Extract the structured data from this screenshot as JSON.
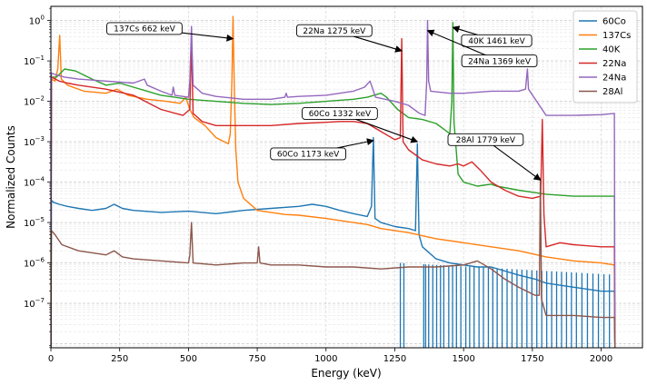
{
  "chart_data": {
    "type": "line",
    "title": "",
    "xlabel": "Energy (keV)",
    "ylabel": "Normalized Counts",
    "xlim": [
      0,
      2150
    ],
    "ylim_log10": [
      -8.1,
      0.35
    ],
    "yscale": "log",
    "grid": true,
    "legend_position": "top-right",
    "x_ticks": [
      0,
      250,
      500,
      750,
      1000,
      1250,
      1500,
      1750,
      2000
    ],
    "x_tick_labels": [
      "0",
      "250",
      "500",
      "750",
      "1000",
      "1250",
      "1500",
      "1750",
      "2000"
    ],
    "y_ticks_log10": [
      -7,
      -6,
      -5,
      -4,
      -3,
      -2,
      -1,
      0
    ],
    "y_tick_bases": [
      "10",
      "10",
      "10",
      "10",
      "10",
      "10",
      "10",
      "10"
    ],
    "y_tick_exponents": [
      "−7",
      "−6",
      "−5",
      "−4",
      "−3",
      "−2",
      "−1",
      "0"
    ],
    "series": [
      {
        "name": "60Co",
        "color": "#1f77b4",
        "points": [
          [
            0,
            -8.1
          ],
          [
            2,
            -4.45
          ],
          [
            10,
            -4.5
          ],
          [
            30,
            -4.55
          ],
          [
            60,
            -4.6
          ],
          [
            100,
            -4.65
          ],
          [
            150,
            -4.7
          ],
          [
            200,
            -4.65
          ],
          [
            230,
            -4.55
          ],
          [
            260,
            -4.65
          ],
          [
            300,
            -4.7
          ],
          [
            400,
            -4.75
          ],
          [
            500,
            -4.72
          ],
          [
            600,
            -4.78
          ],
          [
            700,
            -4.7
          ],
          [
            800,
            -4.65
          ],
          [
            900,
            -4.6
          ],
          [
            950,
            -4.55
          ],
          [
            1000,
            -4.6
          ],
          [
            1050,
            -4.7
          ],
          [
            1100,
            -4.78
          ],
          [
            1150,
            -4.85
          ],
          [
            1165,
            -4.6
          ],
          [
            1172,
            -2.9
          ],
          [
            1178,
            -4.9
          ],
          [
            1200,
            -5.0
          ],
          [
            1250,
            -5.1
          ],
          [
            1300,
            -5.15
          ],
          [
            1325,
            -5.2
          ],
          [
            1332,
            -3.05
          ],
          [
            1338,
            -5.3
          ],
          [
            1350,
            -5.6
          ],
          [
            1400,
            -5.9
          ],
          [
            1450,
            -6.0
          ],
          [
            1500,
            -6.05
          ],
          [
            1550,
            -6.1
          ],
          [
            1600,
            -6.1
          ],
          [
            1700,
            -6.3
          ],
          [
            1760,
            -6.4
          ],
          [
            1800,
            -6.5
          ],
          [
            1900,
            -6.6
          ],
          [
            2000,
            -6.7
          ],
          [
            2048,
            -6.7
          ],
          [
            2050,
            -8.1
          ]
        ],
        "dropouts_x": [
          1270,
          1283,
          1355,
          1362,
          1373,
          1388,
          1402,
          1416,
          1428,
          1446,
          1460,
          1474,
          1490,
          1508,
          1522,
          1538,
          1556,
          1572,
          1590,
          1606,
          1622,
          1640,
          1658,
          1676,
          1694,
          1712,
          1730,
          1748,
          1766,
          1784,
          1802,
          1820,
          1838,
          1856,
          1874,
          1892,
          1910,
          1930,
          1950,
          1970,
          1990,
          2010,
          2030
        ]
      },
      {
        "name": "137Cs",
        "color": "#ff7f0e",
        "points": [
          [
            0,
            -8.1
          ],
          [
            2,
            -1.45
          ],
          [
            15,
            -1.5
          ],
          [
            25,
            -1.2
          ],
          [
            32,
            -0.37
          ],
          [
            38,
            -1.45
          ],
          [
            60,
            -1.6
          ],
          [
            120,
            -1.75
          ],
          [
            200,
            -1.8
          ],
          [
            240,
            -1.7
          ],
          [
            280,
            -1.85
          ],
          [
            350,
            -1.95
          ],
          [
            420,
            -2.0
          ],
          [
            470,
            -2.05
          ],
          [
            490,
            -1.9
          ],
          [
            505,
            -2.2
          ],
          [
            520,
            -2.4
          ],
          [
            560,
            -2.6
          ],
          [
            600,
            -2.9
          ],
          [
            630,
            -3.0
          ],
          [
            645,
            -3.05
          ],
          [
            652,
            -2.8
          ],
          [
            658,
            -1.5
          ],
          [
            662,
            0.1
          ],
          [
            666,
            -1.5
          ],
          [
            672,
            -3.2
          ],
          [
            680,
            -4.0
          ],
          [
            700,
            -4.4
          ],
          [
            750,
            -4.7
          ],
          [
            800,
            -4.75
          ],
          [
            850,
            -4.8
          ],
          [
            900,
            -4.82
          ],
          [
            1000,
            -4.9
          ],
          [
            1100,
            -5.0
          ],
          [
            1150,
            -5.05
          ],
          [
            1200,
            -5.15
          ],
          [
            1300,
            -5.25
          ],
          [
            1400,
            -5.4
          ],
          [
            1500,
            -5.5
          ],
          [
            1600,
            -5.6
          ],
          [
            1700,
            -5.7
          ],
          [
            1800,
            -5.85
          ],
          [
            1900,
            -5.95
          ],
          [
            2000,
            -6.0
          ],
          [
            2048,
            -6.05
          ],
          [
            2050,
            -8.1
          ]
        ]
      },
      {
        "name": "40K",
        "color": "#2ca02c",
        "points": [
          [
            0,
            -8.1
          ],
          [
            2,
            -1.4
          ],
          [
            20,
            -1.4
          ],
          [
            50,
            -1.2
          ],
          [
            90,
            -1.25
          ],
          [
            150,
            -1.45
          ],
          [
            200,
            -1.6
          ],
          [
            250,
            -1.55
          ],
          [
            300,
            -1.65
          ],
          [
            350,
            -1.75
          ],
          [
            400,
            -1.85
          ],
          [
            450,
            -1.9
          ],
          [
            500,
            -1.95
          ],
          [
            600,
            -2.0
          ],
          [
            700,
            -2.05
          ],
          [
            800,
            -2.08
          ],
          [
            900,
            -2.05
          ],
          [
            1000,
            -2.0
          ],
          [
            1100,
            -1.95
          ],
          [
            1150,
            -1.9
          ],
          [
            1200,
            -1.8
          ],
          [
            1220,
            -1.9
          ],
          [
            1260,
            -2.2
          ],
          [
            1300,
            -2.4
          ],
          [
            1350,
            -2.45
          ],
          [
            1400,
            -2.55
          ],
          [
            1430,
            -2.7
          ],
          [
            1450,
            -2.8
          ],
          [
            1457,
            -2.0
          ],
          [
            1461,
            -0.05
          ],
          [
            1465,
            -2.5
          ],
          [
            1480,
            -3.8
          ],
          [
            1500,
            -4.0
          ],
          [
            1550,
            -4.1
          ],
          [
            1600,
            -4.05
          ],
          [
            1620,
            -4.1
          ],
          [
            1700,
            -4.2
          ],
          [
            1750,
            -4.25
          ],
          [
            1800,
            -4.3
          ],
          [
            1900,
            -4.35
          ],
          [
            2000,
            -4.35
          ],
          [
            2048,
            -4.35
          ],
          [
            2050,
            -8.1
          ]
        ]
      },
      {
        "name": "22Na",
        "color": "#d62728",
        "points": [
          [
            0,
            -8.1
          ],
          [
            2,
            -1.4
          ],
          [
            30,
            -1.5
          ],
          [
            60,
            -1.55
          ],
          [
            100,
            -1.6
          ],
          [
            200,
            -1.7
          ],
          [
            300,
            -1.85
          ],
          [
            400,
            -2.2
          ],
          [
            480,
            -2.35
          ],
          [
            505,
            -2.2
          ],
          [
            511,
            -0.55
          ],
          [
            517,
            -2.3
          ],
          [
            550,
            -2.5
          ],
          [
            600,
            -2.6
          ],
          [
            700,
            -2.6
          ],
          [
            800,
            -2.6
          ],
          [
            900,
            -2.55
          ],
          [
            1000,
            -2.52
          ],
          [
            1050,
            -2.5
          ],
          [
            1100,
            -2.5
          ],
          [
            1150,
            -2.55
          ],
          [
            1200,
            -2.75
          ],
          [
            1250,
            -2.95
          ],
          [
            1270,
            -2.9
          ],
          [
            1275,
            -0.45
          ],
          [
            1280,
            -3.0
          ],
          [
            1300,
            -3.2
          ],
          [
            1350,
            -3.45
          ],
          [
            1400,
            -3.55
          ],
          [
            1450,
            -3.6
          ],
          [
            1480,
            -3.55
          ],
          [
            1500,
            -3.6
          ],
          [
            1530,
            -3.5
          ],
          [
            1560,
            -3.7
          ],
          [
            1600,
            -4.0
          ],
          [
            1650,
            -4.2
          ],
          [
            1700,
            -4.35
          ],
          [
            1750,
            -4.4
          ],
          [
            1780,
            -4.35
          ],
          [
            1786,
            -2.45
          ],
          [
            1792,
            -4.8
          ],
          [
            1800,
            -5.6
          ],
          [
            1850,
            -5.5
          ],
          [
            1900,
            -5.55
          ],
          [
            2000,
            -5.6
          ],
          [
            2048,
            -5.6
          ],
          [
            2050,
            -8.1
          ]
        ]
      },
      {
        "name": "24Na",
        "color": "#9467bd",
        "points": [
          [
            0,
            -8.1
          ],
          [
            2,
            -1.3
          ],
          [
            20,
            -1.35
          ],
          [
            50,
            -1.4
          ],
          [
            100,
            -1.45
          ],
          [
            200,
            -1.5
          ],
          [
            300,
            -1.55
          ],
          [
            340,
            -1.45
          ],
          [
            350,
            -1.6
          ],
          [
            400,
            -1.75
          ],
          [
            440,
            -1.85
          ],
          [
            445,
            -1.65
          ],
          [
            450,
            -1.85
          ],
          [
            500,
            -1.9
          ],
          [
            505,
            -1.5
          ],
          [
            511,
            -0.15
          ],
          [
            517,
            -1.6
          ],
          [
            550,
            -1.8
          ],
          [
            600,
            -1.88
          ],
          [
            700,
            -1.95
          ],
          [
            800,
            -1.95
          ],
          [
            850,
            -1.9
          ],
          [
            855,
            -1.8
          ],
          [
            860,
            -1.9
          ],
          [
            900,
            -1.88
          ],
          [
            1000,
            -1.85
          ],
          [
            1100,
            -1.75
          ],
          [
            1140,
            -1.65
          ],
          [
            1160,
            -1.5
          ],
          [
            1180,
            -1.9
          ],
          [
            1250,
            -2.0
          ],
          [
            1300,
            -2.1
          ],
          [
            1340,
            -2.3
          ],
          [
            1360,
            -2.35
          ],
          [
            1366,
            -1.5
          ],
          [
            1369,
            0.0
          ],
          [
            1373,
            -1.5
          ],
          [
            1380,
            -1.75
          ],
          [
            1450,
            -1.8
          ],
          [
            1500,
            -1.8
          ],
          [
            1600,
            -1.75
          ],
          [
            1700,
            -1.75
          ],
          [
            1725,
            -1.7
          ],
          [
            1732,
            -1.2
          ],
          [
            1736,
            -1.7
          ],
          [
            1800,
            -2.35
          ],
          [
            1900,
            -2.35
          ],
          [
            2000,
            -2.33
          ],
          [
            2048,
            -2.3
          ],
          [
            2050,
            -8.1
          ]
        ]
      },
      {
        "name": "28Al",
        "color": "#8c564b",
        "points": [
          [
            0,
            -8.1
          ],
          [
            2,
            -5.2
          ],
          [
            15,
            -5.3
          ],
          [
            40,
            -5.55
          ],
          [
            100,
            -5.7
          ],
          [
            200,
            -5.8
          ],
          [
            230,
            -5.7
          ],
          [
            260,
            -5.85
          ],
          [
            300,
            -5.9
          ],
          [
            400,
            -5.95
          ],
          [
            500,
            -6.0
          ],
          [
            505,
            -5.8
          ],
          [
            511,
            -5.0
          ],
          [
            517,
            -6.0
          ],
          [
            600,
            -6.05
          ],
          [
            700,
            -6.0
          ],
          [
            750,
            -6.0
          ],
          [
            755,
            -5.6
          ],
          [
            760,
            -6.0
          ],
          [
            800,
            -6.05
          ],
          [
            900,
            -6.05
          ],
          [
            1000,
            -6.1
          ],
          [
            1100,
            -6.1
          ],
          [
            1200,
            -6.15
          ],
          [
            1300,
            -6.1
          ],
          [
            1400,
            -6.1
          ],
          [
            1500,
            -6.05
          ],
          [
            1550,
            -5.95
          ],
          [
            1600,
            -6.15
          ],
          [
            1650,
            -6.4
          ],
          [
            1700,
            -6.6
          ],
          [
            1760,
            -6.8
          ],
          [
            1775,
            -6.8
          ],
          [
            1779,
            -3.9
          ],
          [
            1783,
            -6.9
          ],
          [
            1800,
            -7.3
          ],
          [
            1900,
            -7.3
          ],
          [
            2000,
            -7.35
          ],
          [
            2048,
            -7.35
          ],
          [
            2050,
            -8.1
          ]
        ]
      }
    ],
    "annotations": [
      {
        "text": "137Cs 662 keV",
        "text_x": 340,
        "text_log10": -0.2,
        "arrow_x": 662,
        "arrow_log10": -0.45
      },
      {
        "text": "22Na 1275 keV",
        "text_x": 1030,
        "text_log10": -0.25,
        "arrow_x": 1275,
        "arrow_log10": -0.75
      },
      {
        "text": "40K 1461 keV",
        "text_x": 1620,
        "text_log10": -0.5,
        "arrow_x": 1461,
        "arrow_log10": -0.17
      },
      {
        "text": "24Na 1369 keV",
        "text_x": 1630,
        "text_log10": -1.0,
        "arrow_x": 1369,
        "arrow_log10": -0.25
      },
      {
        "text": "60Co 1332 keV",
        "text_x": 1050,
        "text_log10": -2.3,
        "arrow_x": 1332,
        "arrow_log10": -3.0
      },
      {
        "text": "60Co 1173 keV",
        "text_x": 935,
        "text_log10": -3.3,
        "arrow_x": 1172,
        "arrow_log10": -2.97
      },
      {
        "text": "28Al 1779 keV",
        "text_x": 1580,
        "text_log10": -2.95,
        "arrow_x": 1779,
        "arrow_log10": -3.95
      }
    ]
  }
}
